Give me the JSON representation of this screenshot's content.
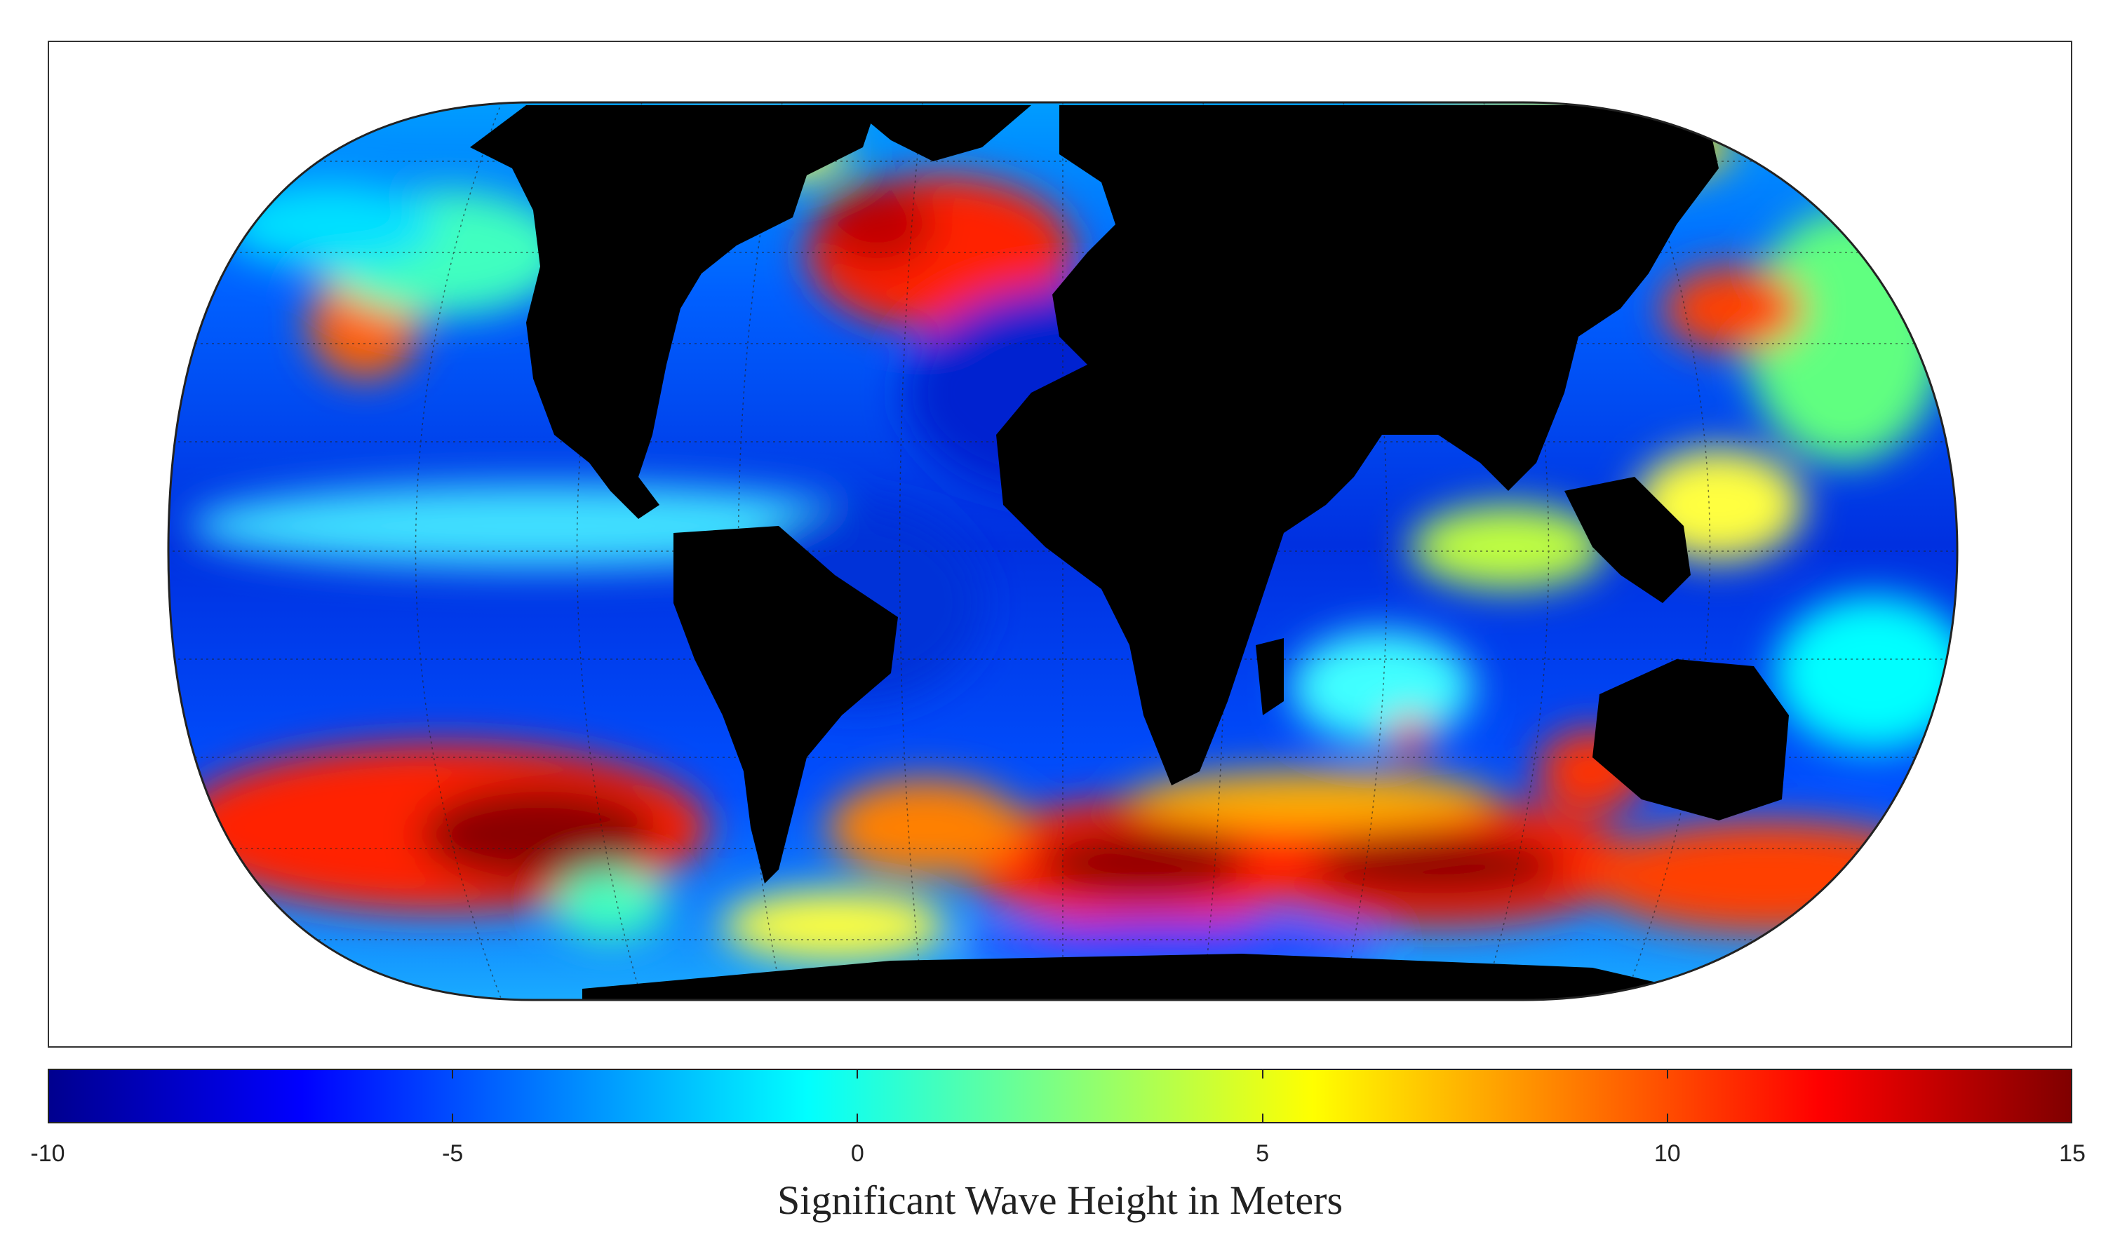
{
  "map": {
    "projection": "Robinson-like pseudocylindrical world map",
    "land_color": "#000000",
    "graticule": true,
    "colormap": "jet",
    "regions": [
      {
        "name": "north-pacific-low",
        "value": 9
      },
      {
        "name": "north-atlantic-storm",
        "value": 11
      },
      {
        "name": "south-pacific-storm",
        "value": 14
      },
      {
        "name": "south-atlantic-storm",
        "value": 14
      },
      {
        "name": "south-indian-storm",
        "value": 14
      },
      {
        "name": "southern-ocean-east",
        "value": 12
      },
      {
        "name": "tropical-pacific",
        "value": -4
      },
      {
        "name": "tropical-atlantic",
        "value": -7
      },
      {
        "name": "arabian-sea",
        "value": 4
      },
      {
        "name": "west-pacific",
        "value": 3
      }
    ]
  },
  "colorbar": {
    "min": -10,
    "max": 15,
    "ticks": [
      "-10",
      "-5",
      "0",
      "5",
      "10",
      "15"
    ],
    "tick_values": [
      -10,
      -5,
      0,
      5,
      10,
      15
    ],
    "title": "Significant Wave Height in Meters",
    "colors": [
      "#00008f",
      "#0000ff",
      "#0080ff",
      "#00ffff",
      "#80ff80",
      "#ffff00",
      "#ff8000",
      "#ff0000",
      "#800000"
    ]
  }
}
